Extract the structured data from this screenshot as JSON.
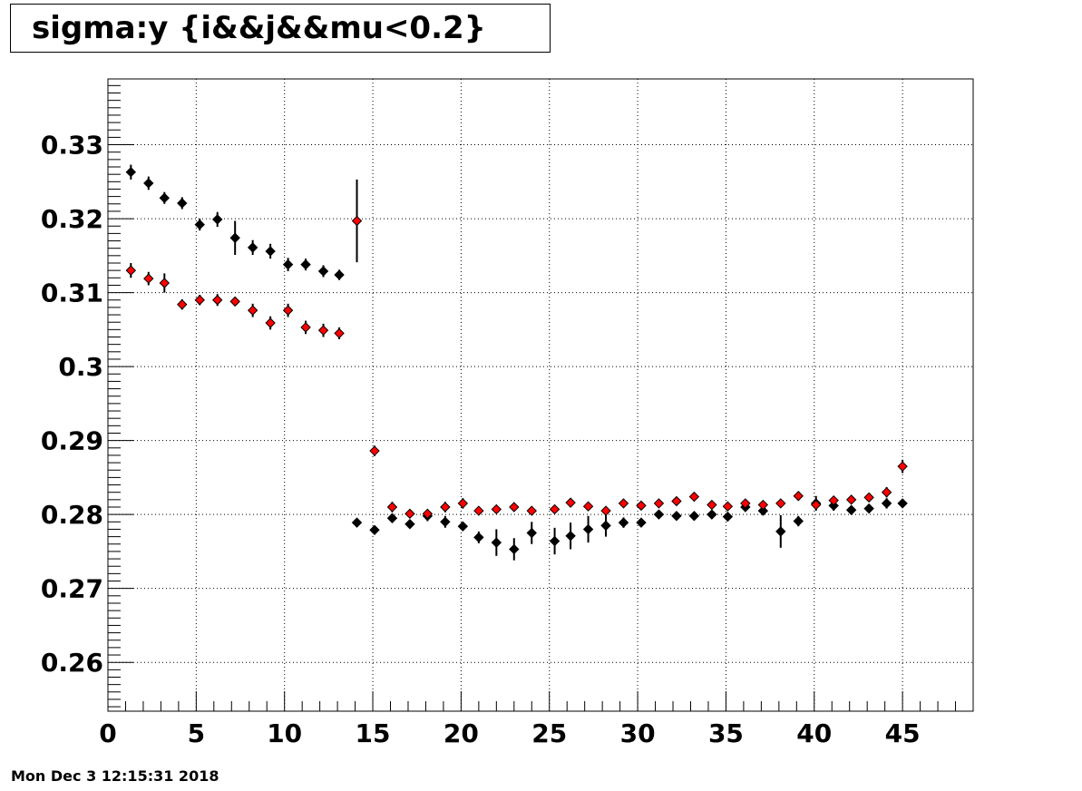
{
  "chart_data": {
    "type": "scatter",
    "title": "sigma:y {i&&j&&mu<0.2}",
    "xlabel": "",
    "ylabel": "",
    "xlim": [
      0,
      49
    ],
    "ylim": [
      0.2534,
      0.3389
    ],
    "grid": true,
    "x_ticks": [
      "0",
      "5",
      "10",
      "15",
      "20",
      "25",
      "30",
      "35",
      "40",
      "45"
    ],
    "y_ticks": [
      "0.26",
      "0.27",
      "0.28",
      "0.29",
      "0.3",
      "0.31",
      "0.32",
      "0.33"
    ],
    "series": [
      {
        "color": "#000000",
        "points": [
          [
            1.3,
            0.3263,
            0.001
          ],
          [
            2.3,
            0.3248,
            0.0009
          ],
          [
            3.2,
            0.3228,
            0.0008
          ],
          [
            4.2,
            0.3221,
            0.0008
          ],
          [
            5.2,
            0.3192,
            0.0008
          ],
          [
            6.2,
            0.3199,
            0.001
          ],
          [
            7.2,
            0.3174,
            0.0023
          ],
          [
            8.2,
            0.3161,
            0.001
          ],
          [
            9.2,
            0.3156,
            0.001
          ],
          [
            10.2,
            0.3138,
            0.0009
          ],
          [
            11.2,
            0.3138,
            0.0008
          ],
          [
            12.2,
            0.3129,
            0.0008
          ],
          [
            13.1,
            0.3124,
            0.0007
          ],
          [
            14.1,
            0.2789,
            0.0004
          ],
          [
            15.1,
            0.2779,
            0.0004
          ],
          [
            16.1,
            0.2795,
            0.0004
          ],
          [
            17.1,
            0.2787,
            0.0005
          ],
          [
            18.1,
            0.2798,
            0.0007
          ],
          [
            19.1,
            0.279,
            0.0008
          ],
          [
            20.1,
            0.2784,
            0.0005
          ],
          [
            21.0,
            0.2769,
            0.0008
          ],
          [
            22.0,
            0.2762,
            0.0018
          ],
          [
            23.0,
            0.2753,
            0.0015
          ],
          [
            24.0,
            0.2775,
            0.0015
          ],
          [
            25.3,
            0.2764,
            0.0018
          ],
          [
            26.2,
            0.2771,
            0.0018
          ],
          [
            27.2,
            0.278,
            0.0018
          ],
          [
            28.2,
            0.2785,
            0.0015
          ],
          [
            29.2,
            0.2789,
            0.0007
          ],
          [
            30.2,
            0.2789,
            0.0005
          ],
          [
            31.2,
            0.28,
            0.0005
          ],
          [
            32.2,
            0.2798,
            0.0004
          ],
          [
            33.2,
            0.2798,
            0.0004
          ],
          [
            34.2,
            0.28,
            0.0004
          ],
          [
            35.1,
            0.2797,
            0.0005
          ],
          [
            36.1,
            0.281,
            0.0004
          ],
          [
            37.1,
            0.2805,
            0.0005
          ],
          [
            38.1,
            0.2777,
            0.0022
          ],
          [
            39.1,
            0.2791,
            0.0007
          ],
          [
            40.1,
            0.2815,
            0.001
          ],
          [
            41.1,
            0.2812,
            0.0007
          ],
          [
            42.1,
            0.2806,
            0.0005
          ],
          [
            43.1,
            0.2808,
            0.0004
          ],
          [
            44.1,
            0.2815,
            0.0007
          ],
          [
            45.0,
            0.2815,
            0.0004
          ]
        ]
      },
      {
        "color": "#ff0000",
        "points": [
          [
            1.3,
            0.313,
            0.001
          ],
          [
            2.3,
            0.3119,
            0.0009
          ],
          [
            3.2,
            0.3113,
            0.0013
          ],
          [
            4.2,
            0.3084,
            0.0007
          ],
          [
            5.2,
            0.309,
            0.0007
          ],
          [
            6.2,
            0.309,
            0.0008
          ],
          [
            7.2,
            0.3088,
            0.0006
          ],
          [
            8.2,
            0.3076,
            0.0009
          ],
          [
            9.2,
            0.3059,
            0.0009
          ],
          [
            10.2,
            0.3076,
            0.0009
          ],
          [
            11.2,
            0.3053,
            0.0009
          ],
          [
            12.2,
            0.3049,
            0.0009
          ],
          [
            13.1,
            0.3045,
            0.0008
          ],
          [
            14.1,
            0.3197,
            0.0056
          ],
          [
            15.1,
            0.2886,
            0.0007
          ],
          [
            16.1,
            0.281,
            0.0007
          ],
          [
            17.1,
            0.2801,
            0.0005
          ],
          [
            18.1,
            0.2801,
            0.0005
          ],
          [
            19.1,
            0.281,
            0.0007
          ],
          [
            20.1,
            0.2815,
            0.0007
          ],
          [
            21.0,
            0.2805,
            0.0005
          ],
          [
            22.0,
            0.2807,
            0.0004
          ],
          [
            23.0,
            0.281,
            0.0005
          ],
          [
            24.0,
            0.2805,
            0.0004
          ],
          [
            25.3,
            0.2807,
            0.0004
          ],
          [
            26.2,
            0.2816,
            0.0005
          ],
          [
            27.2,
            0.2811,
            0.0005
          ],
          [
            28.2,
            0.2805,
            0.0004
          ],
          [
            29.2,
            0.2815,
            0.0005
          ],
          [
            30.2,
            0.2812,
            0.0004
          ],
          [
            31.2,
            0.2815,
            0.0004
          ],
          [
            32.2,
            0.2818,
            0.0004
          ],
          [
            33.2,
            0.2824,
            0.0006
          ],
          [
            34.2,
            0.2813,
            0.0005
          ],
          [
            35.1,
            0.2811,
            0.0004
          ],
          [
            36.1,
            0.2815,
            0.0005
          ],
          [
            37.1,
            0.2813,
            0.0005
          ],
          [
            38.1,
            0.2815,
            0.0004
          ],
          [
            39.1,
            0.2825,
            0.0006
          ],
          [
            40.1,
            0.2813,
            0.0006
          ],
          [
            41.1,
            0.2819,
            0.0005
          ],
          [
            42.1,
            0.282,
            0.0005
          ],
          [
            43.1,
            0.2823,
            0.0005
          ],
          [
            44.1,
            0.283,
            0.0007
          ],
          [
            45.0,
            0.2865,
            0.0009
          ]
        ]
      }
    ]
  },
  "timestamp": "Mon Dec  3 12:15:31 2018"
}
